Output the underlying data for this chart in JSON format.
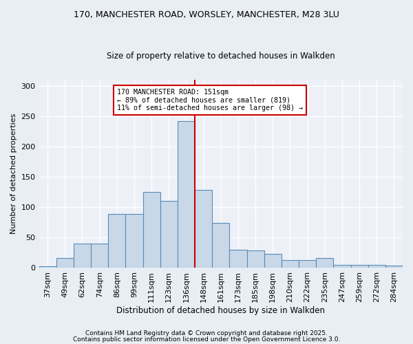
{
  "title1": "170, MANCHESTER ROAD, WORSLEY, MANCHESTER, M28 3LU",
  "title2": "Size of property relative to detached houses in Walkden",
  "xlabel": "Distribution of detached houses by size in Walkden",
  "ylabel": "Number of detached properties",
  "bar_labels": [
    "37sqm",
    "49sqm",
    "62sqm",
    "74sqm",
    "86sqm",
    "99sqm",
    "111sqm",
    "123sqm",
    "136sqm",
    "148sqm",
    "161sqm",
    "173sqm",
    "185sqm",
    "198sqm",
    "210sqm",
    "222sqm",
    "235sqm",
    "247sqm",
    "259sqm",
    "272sqm",
    "284sqm"
  ],
  "bar_values": [
    2,
    16,
    40,
    40,
    88,
    89,
    125,
    110,
    242,
    128,
    74,
    30,
    28,
    23,
    13,
    13,
    16,
    5,
    5,
    5,
    3
  ],
  "bar_color": "#c8d8e8",
  "bar_edge_color": "#5a8ab8",
  "vline_color": "#cc0000",
  "vline_label_idx": 9,
  "annotation_text": "170 MANCHESTER ROAD: 151sqm\n← 89% of detached houses are smaller (819)\n11% of semi-detached houses are larger (98) →",
  "annotation_box_color": "#ffffff",
  "annotation_box_edge_color": "#cc0000",
  "ylim": [
    0,
    310
  ],
  "yticks": [
    0,
    50,
    100,
    150,
    200,
    250,
    300
  ],
  "bg_color": "#e8eef4",
  "plot_bg_color": "#edf1f7",
  "footer1": "Contains HM Land Registry data © Crown copyright and database right 2025.",
  "footer2": "Contains public sector information licensed under the Open Government Licence 3.0."
}
